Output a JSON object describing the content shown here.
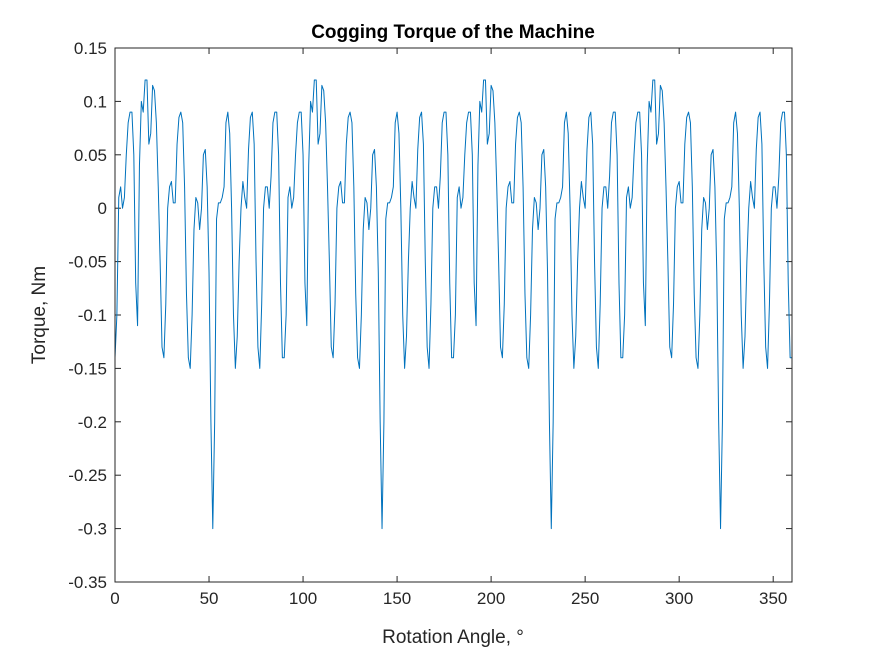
{
  "chart_data": {
    "type": "line",
    "title": "Cogging Torque of the Machine",
    "xlabel": "Rotation Angle, °",
    "ylabel": "Torque, Nm",
    "xlim": [
      0,
      360
    ],
    "ylim": [
      -0.35,
      0.15
    ],
    "xticks": [
      0,
      50,
      100,
      150,
      200,
      250,
      300,
      350
    ],
    "yticks": [
      0.15,
      0.1,
      0.05,
      0,
      -0.05,
      -0.1,
      -0.15,
      -0.2,
      -0.25,
      -0.3,
      -0.35
    ],
    "xtick_labels": [
      "0",
      "50",
      "100",
      "150",
      "200",
      "250",
      "300",
      "350"
    ],
    "ytick_labels": [
      "0.15",
      "0.1",
      "0.05",
      "0",
      "-0.05",
      "-0.1",
      "-0.15",
      "-0.2",
      "-0.25",
      "-0.3",
      "-0.35"
    ],
    "grid": false,
    "legend": "none",
    "line_color": "#0072BD",
    "series": [
      {
        "x": [
          0,
          1,
          2,
          3,
          4,
          5,
          6,
          7,
          8,
          9,
          10,
          11,
          12,
          13,
          14,
          15,
          16,
          17,
          18,
          19,
          20,
          21,
          22,
          23,
          24,
          25,
          26,
          27,
          28,
          29,
          30,
          31,
          32,
          33,
          34,
          35,
          36,
          37,
          38,
          39,
          40,
          41,
          42,
          43,
          44,
          45,
          46,
          47,
          48,
          49,
          50,
          51,
          52,
          53,
          54,
          55,
          56,
          57,
          58,
          59,
          60,
          61,
          62,
          63,
          64,
          65,
          66,
          67,
          68,
          69,
          70,
          71,
          72,
          73,
          74,
          75,
          76,
          77,
          78,
          79,
          80,
          81,
          82,
          83,
          84,
          85,
          86,
          87,
          88,
          89,
          90
        ],
        "y": [
          -0.14,
          -0.1,
          0.01,
          0.02,
          0.0,
          0.01,
          0.05,
          0.08,
          0.09,
          0.09,
          0.05,
          -0.07,
          -0.11,
          0.04,
          0.1,
          0.09,
          0.12,
          0.12,
          0.06,
          0.07,
          0.115,
          0.11,
          0.08,
          0.02,
          -0.05,
          -0.13,
          -0.14,
          -0.09,
          0.0,
          0.02,
          0.025,
          0.005,
          0.005,
          0.06,
          0.085,
          0.09,
          0.08,
          0.02,
          -0.08,
          -0.14,
          -0.15,
          -0.1,
          -0.02,
          0.01,
          0.005,
          -0.02,
          0.0,
          0.05,
          0.055,
          0.02,
          -0.06,
          -0.2,
          -0.3,
          -0.2,
          -0.01,
          0.005,
          0.005,
          0.01,
          0.02,
          0.08,
          0.09,
          0.07,
          0.0,
          -0.1,
          -0.15,
          -0.12,
          -0.05,
          0.0,
          0.025,
          0.01,
          0.0,
          0.055,
          0.085,
          0.09,
          0.06,
          -0.05,
          -0.13,
          -0.15,
          -0.09,
          0.0,
          0.02,
          0.02,
          0.0,
          0.03,
          0.08,
          0.09,
          0.09,
          0.05,
          -0.07,
          -0.14,
          -0.14
        ]
      }
    ]
  }
}
